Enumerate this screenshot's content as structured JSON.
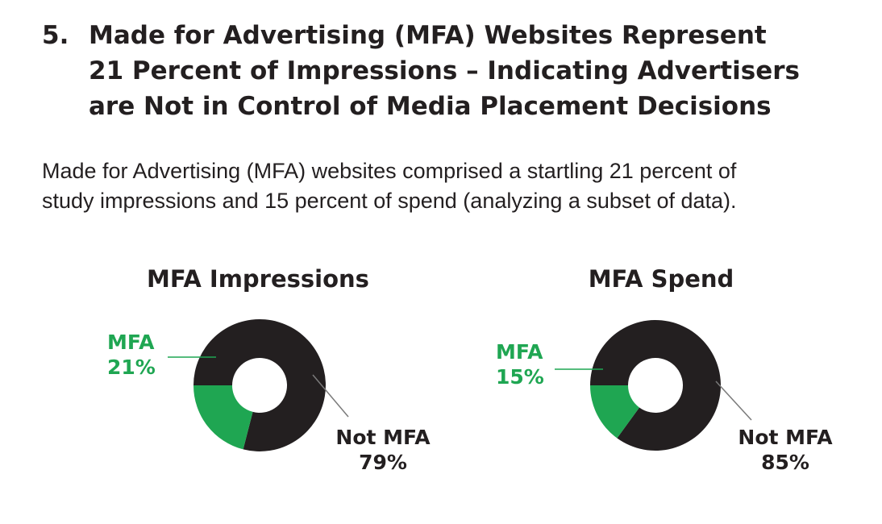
{
  "heading": {
    "number": "5.",
    "title": "Made for Advertising (MFA) Websites Represent\n21 Percent of Impressions – Indicating Advertisers\nare Not in Control of Media Placement Decisions"
  },
  "intro": "Made for Advertising (MFA) websites comprised a startling 21 percent of\nstudy impressions and 15 percent of spend (analyzing a subset of data).",
  "colors": {
    "mfa": "#1fa652",
    "not_mfa": "#231f20",
    "text": "#231f20"
  },
  "chart_data": [
    {
      "type": "pie",
      "subtype": "donut",
      "title": "MFA Impressions",
      "slices": [
        {
          "label": "MFA",
          "value": 21,
          "value_label": "21%",
          "color": "#1fa652"
        },
        {
          "label": "Not MFA",
          "value": 79,
          "value_label": "79%",
          "color": "#231f20"
        }
      ]
    },
    {
      "type": "pie",
      "subtype": "donut",
      "title": "MFA Spend",
      "slices": [
        {
          "label": "MFA",
          "value": 15,
          "value_label": "15%",
          "color": "#1fa652"
        },
        {
          "label": "Not MFA",
          "value": 85,
          "value_label": "85%",
          "color": "#231f20"
        }
      ]
    }
  ]
}
